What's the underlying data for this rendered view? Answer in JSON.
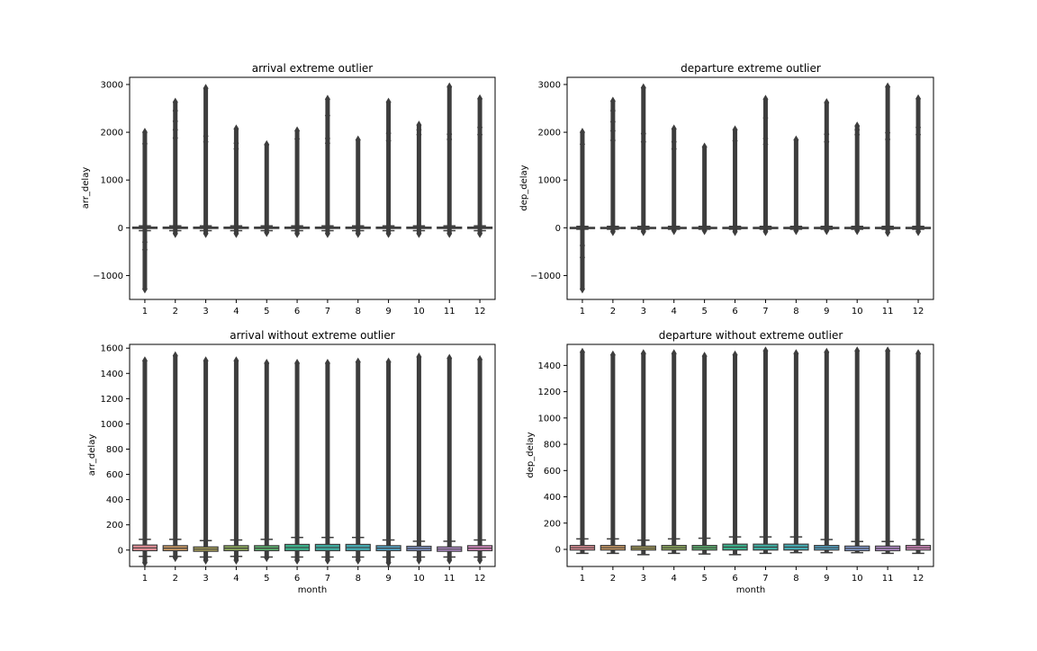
{
  "chart_data": [
    {
      "type": "boxplot",
      "title": "arrival extreme outlier",
      "xlabel": "",
      "ylabel": "arr_delay",
      "ylim": [
        -1500,
        3150
      ],
      "yticks": [
        -1000,
        0,
        1000,
        2000,
        3000
      ],
      "categories": [
        "1",
        "2",
        "3",
        "4",
        "5",
        "6",
        "7",
        "8",
        "9",
        "10",
        "11",
        "12"
      ],
      "box_color": "#7a7a7a",
      "boxes": [
        {
          "q1": -15,
          "q3": 15,
          "whisker_low": -60,
          "whisker_high": 40,
          "flier_low": -1280,
          "flier_high": 2000,
          "extra_fliers": [
            1760,
            -460,
            -300
          ]
        },
        {
          "q1": -15,
          "q3": 15,
          "whisker_low": -60,
          "whisker_high": 40,
          "flier_low": -120,
          "flier_high": 2630,
          "extra_fliers": [
            2450,
            2230,
            2050,
            1880
          ]
        },
        {
          "q1": -15,
          "q3": 15,
          "whisker_low": -60,
          "whisker_high": 40,
          "flier_low": -120,
          "flier_high": 2920,
          "extra_fliers": [
            1920,
            1800
          ]
        },
        {
          "q1": -15,
          "q3": 15,
          "whisker_low": -60,
          "whisker_high": 40,
          "flier_low": -120,
          "flier_high": 2070,
          "extra_fliers": [
            1770,
            1650
          ]
        },
        {
          "q1": -15,
          "q3": 15,
          "whisker_low": -60,
          "whisker_high": 40,
          "flier_low": -100,
          "flier_high": 1740,
          "extra_fliers": []
        },
        {
          "q1": -15,
          "q3": 15,
          "whisker_low": -60,
          "whisker_high": 40,
          "flier_low": -120,
          "flier_high": 2030,
          "extra_fliers": [
            1860
          ]
        },
        {
          "q1": -15,
          "q3": 15,
          "whisker_low": -60,
          "whisker_high": 40,
          "flier_low": -120,
          "flier_high": 2690,
          "extra_fliers": [
            2350,
            1870,
            1770
          ]
        },
        {
          "q1": -15,
          "q3": 15,
          "whisker_low": -60,
          "whisker_high": 40,
          "flier_low": -120,
          "flier_high": 1840,
          "extra_fliers": []
        },
        {
          "q1": -15,
          "q3": 15,
          "whisker_low": -60,
          "whisker_high": 40,
          "flier_low": -120,
          "flier_high": 2630,
          "extra_fliers": [
            1980,
            1820
          ]
        },
        {
          "q1": -15,
          "q3": 15,
          "whisker_low": -60,
          "whisker_high": 40,
          "flier_low": -120,
          "flier_high": 2150,
          "extra_fliers": [
            2050,
            1950
          ]
        },
        {
          "q1": -15,
          "q3": 15,
          "whisker_low": -60,
          "whisker_high": 40,
          "flier_low": -120,
          "flier_high": 2950,
          "extra_fliers": [
            1960,
            1850
          ]
        },
        {
          "q1": -15,
          "q3": 15,
          "whisker_low": -60,
          "whisker_high": 40,
          "flier_low": -120,
          "flier_high": 2700,
          "extra_fliers": [
            2100,
            1950
          ]
        }
      ]
    },
    {
      "type": "boxplot",
      "title": "departure extreme outlier",
      "xlabel": "",
      "ylabel": "dep_delay",
      "ylim": [
        -1500,
        3150
      ],
      "yticks": [
        -1000,
        0,
        1000,
        2000,
        3000
      ],
      "categories": [
        "1",
        "2",
        "3",
        "4",
        "5",
        "6",
        "7",
        "8",
        "9",
        "10",
        "11",
        "12"
      ],
      "box_color": "#7a7a7a",
      "boxes": [
        {
          "q1": -5,
          "q3": 10,
          "whisker_low": -30,
          "whisker_high": 30,
          "flier_low": -1280,
          "flier_high": 2000,
          "extra_fliers": [
            1750,
            -620,
            -370
          ]
        },
        {
          "q1": -5,
          "q3": 10,
          "whisker_low": -30,
          "whisker_high": 30,
          "flier_low": -80,
          "flier_high": 2650,
          "extra_fliers": [
            2450,
            2220,
            2030,
            1830
          ]
        },
        {
          "q1": -5,
          "q3": 10,
          "whisker_low": -30,
          "whisker_high": 30,
          "flier_low": -80,
          "flier_high": 2930,
          "extra_fliers": [
            1970,
            1800
          ]
        },
        {
          "q1": -5,
          "q3": 10,
          "whisker_low": -30,
          "whisker_high": 30,
          "flier_low": -60,
          "flier_high": 2070,
          "extra_fliers": [
            1800,
            1650
          ]
        },
        {
          "q1": -5,
          "q3": 10,
          "whisker_low": -30,
          "whisker_high": 30,
          "flier_low": -60,
          "flier_high": 1690,
          "extra_fliers": []
        },
        {
          "q1": -5,
          "q3": 10,
          "whisker_low": -30,
          "whisker_high": 30,
          "flier_low": -80,
          "flier_high": 2050,
          "extra_fliers": [
            1820
          ]
        },
        {
          "q1": -5,
          "q3": 10,
          "whisker_low": -30,
          "whisker_high": 30,
          "flier_low": -80,
          "flier_high": 2690,
          "extra_fliers": [
            2300,
            1870,
            1750
          ]
        },
        {
          "q1": -5,
          "q3": 10,
          "whisker_low": -30,
          "whisker_high": 30,
          "flier_low": -60,
          "flier_high": 1840,
          "extra_fliers": []
        },
        {
          "q1": -5,
          "q3": 10,
          "whisker_low": -30,
          "whisker_high": 30,
          "flier_low": -60,
          "flier_high": 2620,
          "extra_fliers": [
            1960,
            1800
          ]
        },
        {
          "q1": -5,
          "q3": 10,
          "whisker_low": -30,
          "whisker_high": 30,
          "flier_low": -60,
          "flier_high": 2130,
          "extra_fliers": [
            2050,
            1950
          ]
        },
        {
          "q1": -5,
          "q3": 10,
          "whisker_low": -30,
          "whisker_high": 30,
          "flier_low": -100,
          "flier_high": 2950,
          "extra_fliers": [
            1990,
            1850
          ]
        },
        {
          "q1": -5,
          "q3": 10,
          "whisker_low": -30,
          "whisker_high": 30,
          "flier_low": -80,
          "flier_high": 2700,
          "extra_fliers": [
            2100,
            1950
          ]
        }
      ]
    },
    {
      "type": "boxplot",
      "title": "arrival without extreme outlier",
      "xlabel": "month",
      "ylabel": "arr_delay",
      "ylim": [
        -130,
        1630
      ],
      "yticks": [
        0,
        200,
        400,
        600,
        800,
        1000,
        1200,
        1400,
        1600
      ],
      "categories": [
        "1",
        "2",
        "3",
        "4",
        "5",
        "6",
        "7",
        "8",
        "9",
        "10",
        "11",
        "12"
      ],
      "boxes": [
        {
          "color": "#e8929a",
          "q1": -5,
          "q3": 40,
          "whisker_low": -50,
          "whisker_high": 85,
          "flier_low": -100,
          "flier_high": 1500
        },
        {
          "color": "#d4a067",
          "q1": -5,
          "q3": 35,
          "whisker_low": -50,
          "whisker_high": 85,
          "flier_low": -60,
          "flier_high": 1540
        },
        {
          "color": "#b5ab5c",
          "q1": -10,
          "q3": 25,
          "whisker_low": -55,
          "whisker_high": 75,
          "flier_low": -80,
          "flier_high": 1500
        },
        {
          "color": "#93b25f",
          "q1": -5,
          "q3": 35,
          "whisker_low": -50,
          "whisker_high": 80,
          "flier_low": -80,
          "flier_high": 1500
        },
        {
          "color": "#5eb872",
          "q1": -5,
          "q3": 35,
          "whisker_low": -55,
          "whisker_high": 85,
          "flier_low": -60,
          "flier_high": 1480
        },
        {
          "color": "#3db28d",
          "q1": -5,
          "q3": 45,
          "whisker_low": -55,
          "whisker_high": 100,
          "flier_low": -80,
          "flier_high": 1480
        },
        {
          "color": "#41aea2",
          "q1": -5,
          "q3": 45,
          "whisker_low": -55,
          "whisker_high": 100,
          "flier_low": -80,
          "flier_high": 1480
        },
        {
          "color": "#46acb3",
          "q1": -5,
          "q3": 45,
          "whisker_low": -55,
          "whisker_high": 100,
          "flier_low": -80,
          "flier_high": 1490
        },
        {
          "color": "#55a9cc",
          "q1": -5,
          "q3": 35,
          "whisker_low": -55,
          "whisker_high": 80,
          "flier_low": -100,
          "flier_high": 1490
        },
        {
          "color": "#8aa2dc",
          "q1": -5,
          "q3": 30,
          "whisker_low": -55,
          "whisker_high": 70,
          "flier_low": -80,
          "flier_high": 1530
        },
        {
          "color": "#c196dc",
          "q1": -10,
          "q3": 25,
          "whisker_low": -55,
          "whisker_high": 70,
          "flier_low": -80,
          "flier_high": 1520
        },
        {
          "color": "#df8ec8",
          "q1": -5,
          "q3": 35,
          "whisker_low": -55,
          "whisker_high": 80,
          "flier_low": -80,
          "flier_high": 1510
        }
      ]
    },
    {
      "type": "boxplot",
      "title": "departure without extreme outlier",
      "xlabel": "month",
      "ylabel": "dep_delay",
      "ylim": [
        -130,
        1560
      ],
      "yticks": [
        0,
        200,
        400,
        600,
        800,
        1000,
        1200,
        1400
      ],
      "categories": [
        "1",
        "2",
        "3",
        "4",
        "5",
        "6",
        "7",
        "8",
        "9",
        "10",
        "11",
        "12"
      ],
      "boxes": [
        {
          "color": "#e8929a",
          "q1": -5,
          "q3": 30,
          "whisker_low": -30,
          "whisker_high": 80,
          "flier_high": 1500
        },
        {
          "color": "#d4a067",
          "q1": -5,
          "q3": 30,
          "whisker_low": -30,
          "whisker_high": 80,
          "flier_high": 1480
        },
        {
          "color": "#b5ab5c",
          "q1": -5,
          "q3": 25,
          "whisker_low": -40,
          "whisker_high": 70,
          "flier_high": 1490
        },
        {
          "color": "#93b25f",
          "q1": -5,
          "q3": 30,
          "whisker_low": -30,
          "whisker_high": 80,
          "flier_high": 1490
        },
        {
          "color": "#5eb872",
          "q1": -5,
          "q3": 30,
          "whisker_low": -35,
          "whisker_high": 85,
          "flier_high": 1470
        },
        {
          "color": "#3db28d",
          "q1": -5,
          "q3": 40,
          "whisker_low": -40,
          "whisker_high": 95,
          "flier_high": 1480
        },
        {
          "color": "#41aea2",
          "q1": -5,
          "q3": 40,
          "whisker_low": -30,
          "whisker_high": 95,
          "flier_high": 1510
        },
        {
          "color": "#46acb3",
          "q1": -5,
          "q3": 40,
          "whisker_low": -25,
          "whisker_high": 95,
          "flier_high": 1490
        },
        {
          "color": "#55a9cc",
          "q1": -5,
          "q3": 30,
          "whisker_low": -25,
          "whisker_high": 75,
          "flier_high": 1500
        },
        {
          "color": "#8aa2dc",
          "q1": -10,
          "q3": 25,
          "whisker_low": -25,
          "whisker_high": 60,
          "flier_high": 1510
        },
        {
          "color": "#c196dc",
          "q1": -10,
          "q3": 25,
          "whisker_low": -30,
          "whisker_high": 60,
          "flier_high": 1510
        },
        {
          "color": "#df8ec8",
          "q1": -5,
          "q3": 30,
          "whisker_low": -30,
          "whisker_high": 75,
          "flier_high": 1490
        }
      ]
    }
  ]
}
